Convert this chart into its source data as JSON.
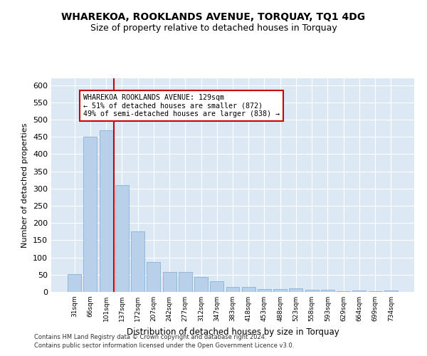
{
  "title1": "WHAREKOA, ROOKLANDS AVENUE, TORQUAY, TQ1 4DG",
  "title2": "Size of property relative to detached houses in Torquay",
  "xlabel": "Distribution of detached houses by size in Torquay",
  "ylabel": "Number of detached properties",
  "categories": [
    "31sqm",
    "66sqm",
    "101sqm",
    "137sqm",
    "172sqm",
    "207sqm",
    "242sqm",
    "277sqm",
    "312sqm",
    "347sqm",
    "383sqm",
    "418sqm",
    "453sqm",
    "488sqm",
    "523sqm",
    "558sqm",
    "593sqm",
    "629sqm",
    "664sqm",
    "699sqm",
    "734sqm"
  ],
  "values": [
    52,
    450,
    470,
    310,
    175,
    87,
    57,
    57,
    43,
    30,
    15,
    15,
    8,
    8,
    10,
    7,
    7,
    3,
    5,
    2,
    4
  ],
  "bar_color": "#b8d0ea",
  "bar_edge_color": "#7aaace",
  "vline_color": "#cc0000",
  "annotation_text": "WHAREKOA ROOKLANDS AVENUE: 129sqm\n← 51% of detached houses are smaller (872)\n49% of semi-detached houses are larger (838) →",
  "annotation_box_color": "#ffffff",
  "annotation_box_edge": "#cc0000",
  "footer1": "Contains HM Land Registry data © Crown copyright and database right 2024.",
  "footer2": "Contains public sector information licensed under the Open Government Licence v3.0.",
  "ylim": [
    0,
    620
  ],
  "yticks": [
    0,
    50,
    100,
    150,
    200,
    250,
    300,
    350,
    400,
    450,
    500,
    550,
    600
  ],
  "plot_bg_color": "#dce9f5",
  "title1_fontsize": 10,
  "title2_fontsize": 9,
  "vline_xindex": 2.5
}
